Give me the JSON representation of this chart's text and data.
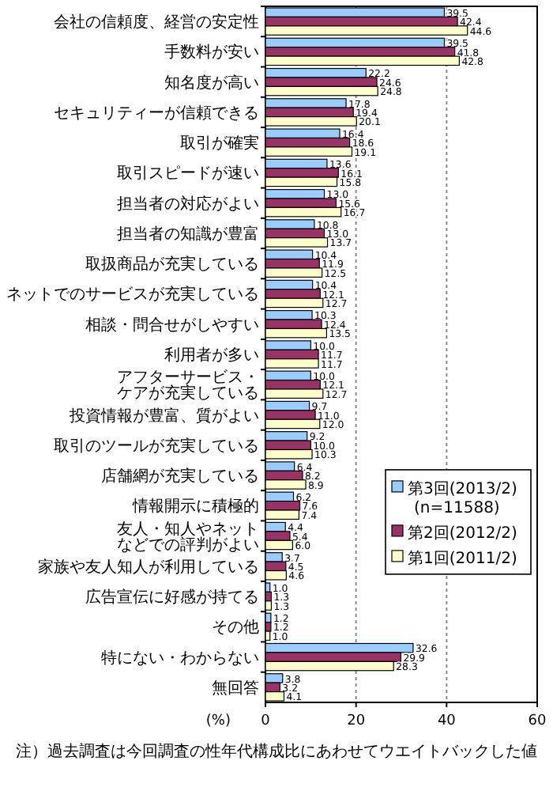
{
  "chart_data": {
    "type": "bar",
    "orientation": "horizontal",
    "categories": [
      "会社の信頼度、経営の安定性",
      "手数料が安い",
      "知名度が高い",
      "セキュリティーが信頼できる",
      "取引が確実",
      "取引スピードが速い",
      "担当者の対応がよい",
      "担当者の知識が豊富",
      "取扱商品が充実している",
      "ネットでのサービスが充実している",
      "相談・問合せがしやすい",
      "利用者が多い",
      "アフターサービス・ケアが充実している",
      "投資情報が豊富、質がよい",
      "取引のツールが充実している",
      "店舗網が充実している",
      "情報開示に積極的",
      "友人・知人やネットなどでの評判がよい",
      "家族や友人知人が利用している",
      "広告宣伝に好感が持てる",
      "その他",
      "特にない・わからない",
      "無回答"
    ],
    "series": [
      {
        "name": "第3回(2013/2) (n=11588)",
        "color": "#99ccff",
        "values": [
          39.5,
          39.5,
          22.2,
          17.8,
          16.4,
          13.6,
          13.0,
          10.8,
          10.4,
          10.4,
          10.3,
          10.0,
          10.0,
          9.7,
          9.2,
          6.4,
          6.2,
          4.4,
          3.7,
          1.0,
          1.2,
          32.6,
          3.8
        ],
        "value_labels": [
          "39.5",
          "39.5",
          "22.2",
          "17.8",
          "16.4",
          "13.6",
          "13.0",
          "10.8",
          "10.4",
          "10.4",
          "10.3",
          "10.0",
          "10.0",
          "9.7",
          "9.2",
          "6.4",
          "6.2",
          "4.4",
          "3.7",
          "1.0",
          "1.2",
          "32.6",
          "3.8"
        ]
      },
      {
        "name": "第2回(2012/2)",
        "color": "#993366",
        "values": [
          42.4,
          41.8,
          24.6,
          19.4,
          18.6,
          16.1,
          15.6,
          13.0,
          11.9,
          12.1,
          12.4,
          11.7,
          12.1,
          11.0,
          10.0,
          8.2,
          7.6,
          5.4,
          4.5,
          1.3,
          1.2,
          29.9,
          3.2
        ],
        "value_labels": [
          "42.4",
          "41.8",
          "24.6",
          "19.4",
          "18.6",
          "16.1",
          "15.6",
          "13.0",
          "11.9",
          "12.1",
          "12.4",
          "11.7",
          "12.1",
          "11.0",
          "10.0",
          "8.2",
          "7.6",
          "5.4",
          "4.5",
          "1.3",
          "1.2",
          "29.9",
          "3.2"
        ]
      },
      {
        "name": "第1回(2011/2)",
        "color": "#ffffcc",
        "values": [
          44.6,
          42.8,
          24.8,
          20.1,
          19.1,
          15.8,
          16.7,
          13.7,
          12.5,
          12.7,
          13.5,
          11.7,
          12.7,
          12.0,
          10.3,
          8.9,
          7.4,
          6.0,
          4.6,
          1.3,
          1.0,
          28.3,
          4.1
        ],
        "value_labels": [
          "44.6",
          "42.8",
          "24.8",
          "20.1",
          "19.1",
          "15.8",
          "16.7",
          "13.7",
          "12.5",
          "12.7",
          "13.5",
          "11.7",
          "12.7",
          "12.0",
          "10.3",
          "8.9",
          "7.4",
          "6.0",
          "4.6",
          "1.3",
          "1.0",
          "28.3",
          "4.1"
        ]
      }
    ],
    "xlim": [
      0,
      60
    ],
    "xticks": [
      0,
      20,
      40,
      60
    ],
    "xlabel": "(%)",
    "grid": "x",
    "legend": "bottom right",
    "annotations": [
      "注）過去調査は今回調査の性年代構成比にあわせてウエイトバックした値"
    ]
  }
}
